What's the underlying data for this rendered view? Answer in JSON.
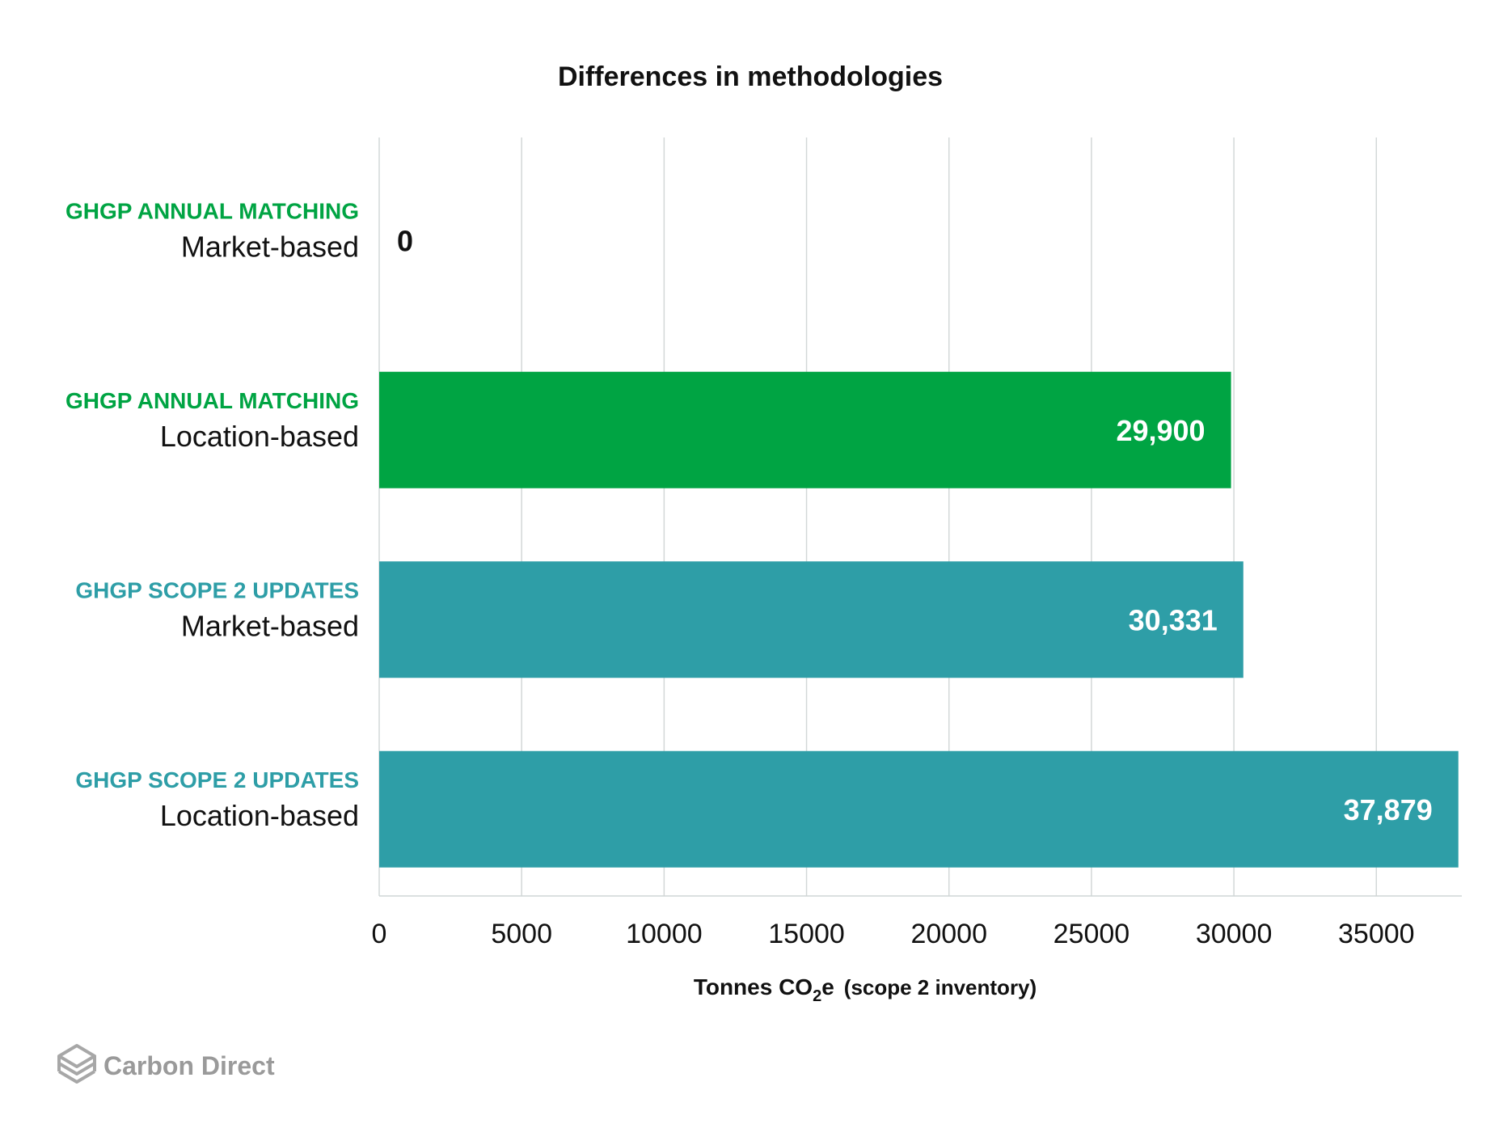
{
  "chart_data": {
    "type": "bar",
    "orientation": "horizontal",
    "title": "Differences in methodologies",
    "categories": [
      {
        "group": "GHGP ANNUAL MATCHING",
        "method": "Market-based",
        "color": "#00a443"
      },
      {
        "group": "GHGP ANNUAL MATCHING",
        "method": "Location-based",
        "color": "#00a443"
      },
      {
        "group": "GHGP SCOPE 2 UPDATES",
        "method": "Market-based",
        "color": "#2e9ea7"
      },
      {
        "group": "GHGP SCOPE 2 UPDATES",
        "method": "Location-based",
        "color": "#2e9ea7"
      }
    ],
    "values": [
      0,
      29900,
      30331,
      37879
    ],
    "value_labels": [
      "0",
      "29,900",
      "30,331",
      "37,879"
    ],
    "xlim": [
      0,
      38000
    ],
    "xticks": [
      0,
      5000,
      10000,
      15000,
      20000,
      25000,
      30000,
      35000
    ],
    "xlabel": {
      "main": "Tonnes CO",
      "subscript": "2",
      "suffix": "e",
      "note": "(scope 2 inventory)"
    },
    "grid": true,
    "legend": "none"
  },
  "branding": {
    "logo_text": "Carbon Direct",
    "logo_icon": "stacked-layers-icon"
  }
}
